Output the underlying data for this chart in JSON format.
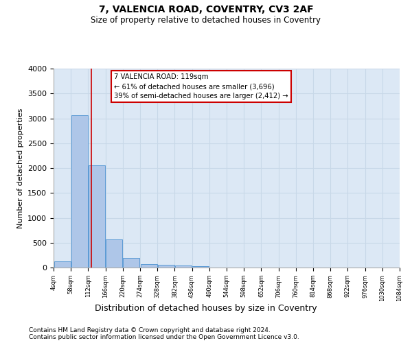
{
  "title1": "7, VALENCIA ROAD, COVENTRY, CV3 2AF",
  "title2": "Size of property relative to detached houses in Coventry",
  "xlabel": "Distribution of detached houses by size in Coventry",
  "ylabel": "Number of detached properties",
  "footnote1": "Contains HM Land Registry data © Crown copyright and database right 2024.",
  "footnote2": "Contains public sector information licensed under the Open Government Licence v3.0.",
  "bar_color": "#aec6e8",
  "bar_edge_color": "#5b9bd5",
  "grid_color": "#c8d8e8",
  "background_color": "#dce8f5",
  "vline_color": "#cc0000",
  "annotation_text": "7 VALENCIA ROAD: 119sqm\n← 61% of detached houses are smaller (3,696)\n39% of semi-detached houses are larger (2,412) →",
  "annotation_box_color": "#ffffff",
  "annotation_box_edge": "#cc0000",
  "bin_labels": [
    "4sqm",
    "58sqm",
    "112sqm",
    "166sqm",
    "220sqm",
    "274sqm",
    "328sqm",
    "382sqm",
    "436sqm",
    "490sqm",
    "544sqm",
    "598sqm",
    "652sqm",
    "706sqm",
    "760sqm",
    "814sqm",
    "868sqm",
    "922sqm",
    "976sqm",
    "1030sqm",
    "1084sqm"
  ],
  "bar_heights": [
    130,
    3060,
    2060,
    560,
    200,
    70,
    55,
    40,
    30,
    0,
    0,
    0,
    0,
    0,
    0,
    0,
    0,
    0,
    0,
    0
  ],
  "n_bins": 20,
  "vline_bin": 2.185,
  "ylim": [
    0,
    4000
  ],
  "yticks": [
    0,
    500,
    1000,
    1500,
    2000,
    2500,
    3000,
    3500,
    4000
  ],
  "figsize": [
    6.0,
    5.0
  ],
  "dpi": 100
}
